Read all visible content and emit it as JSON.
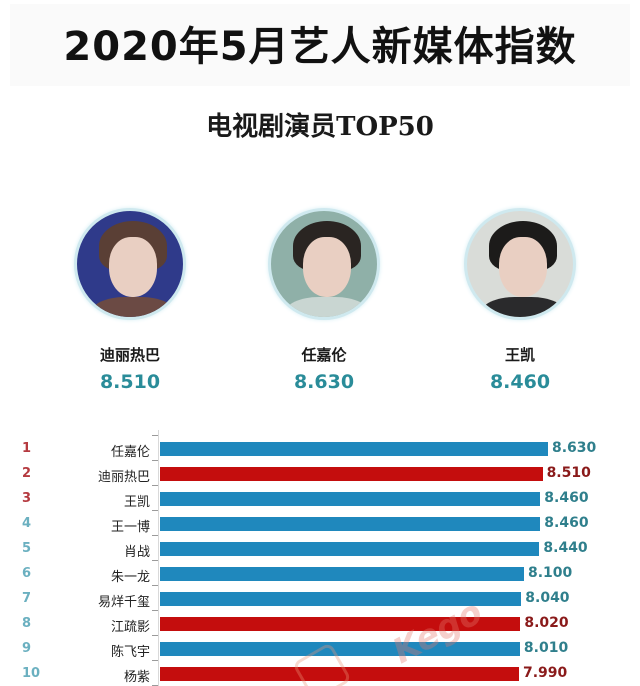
{
  "header": {
    "title": "2020年5月艺人新媒体指数",
    "subtitle": "电视剧演员TOP50"
  },
  "podium": [
    {
      "position": "left",
      "name": "迪丽热巴",
      "score": "8.510",
      "avatar_bg": "#2f3a8a",
      "hair": "#5a3f35",
      "body": "#6b4a44"
    },
    {
      "position": "center",
      "name": "任嘉伦",
      "score": "8.630",
      "avatar_bg": "#8fb0a8",
      "hair": "#2a2522",
      "body": "#c9d6d2"
    },
    {
      "position": "right",
      "name": "王凯",
      "score": "8.460",
      "avatar_bg": "#d9dcd8",
      "hair": "#1c1b1a",
      "body": "#2a2a2c"
    }
  ],
  "colors": {
    "blue_bar": "#1f88bd",
    "red_bar": "#c40d0d",
    "score_teal": "#2a8c99"
  },
  "chart_data": {
    "type": "bar",
    "orientation": "horizontal",
    "title": "电视剧演员TOP50",
    "categories": [
      "任嘉伦",
      "迪丽热巴",
      "王凯",
      "王一博",
      "肖战",
      "朱一龙",
      "易烊千玺",
      "江疏影",
      "陈飞宇",
      "杨紫"
    ],
    "ranks": [
      "1",
      "2",
      "3",
      "4",
      "5",
      "6",
      "7",
      "8",
      "9",
      "10"
    ],
    "values": [
      8.63,
      8.51,
      8.46,
      8.46,
      8.44,
      8.1,
      8.04,
      8.02,
      8.01,
      7.99
    ],
    "value_labels": [
      "8.630",
      "8.510",
      "8.460",
      "8.460",
      "8.440",
      "8.100",
      "8.040",
      "8.020",
      "8.010",
      "7.990"
    ],
    "bar_colors": [
      "blue",
      "red",
      "blue",
      "blue",
      "blue",
      "blue",
      "blue",
      "red",
      "blue",
      "red"
    ],
    "rank_colors": [
      "red",
      "red",
      "red",
      "blue",
      "blue",
      "blue",
      "blue",
      "blue",
      "blue",
      "blue"
    ],
    "xlabel": "",
    "ylabel": "",
    "grid": false,
    "legend": null
  },
  "watermark": "Kego"
}
